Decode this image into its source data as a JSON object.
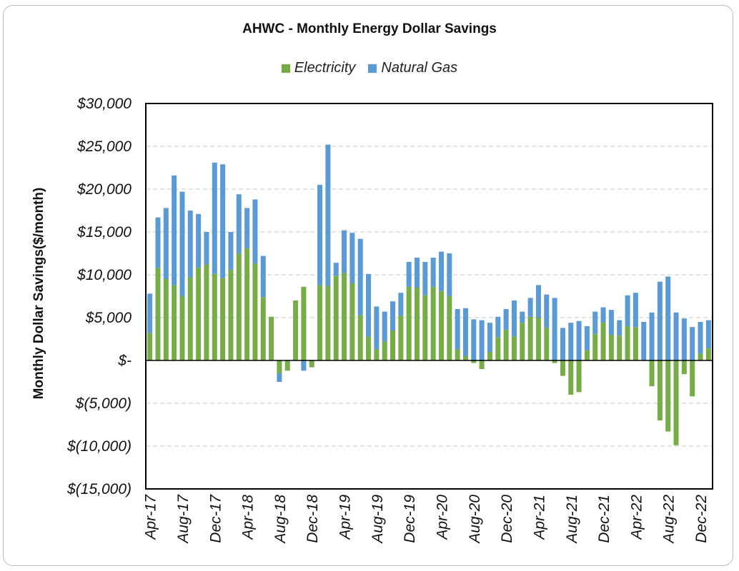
{
  "chart_data": {
    "type": "bar",
    "stacked": true,
    "title": "AHWC - Monthly Energy Dollar Savings",
    "ylabel": "Monthly Dollar Savings($/month)",
    "ylim": [
      -15000,
      30000
    ],
    "y_ticks": [
      30000,
      25000,
      20000,
      15000,
      10000,
      5000,
      0,
      -5000,
      -10000,
      -15000
    ],
    "y_tick_labels": [
      "$30,000",
      "$25,000",
      "$20,000",
      "$15,000",
      "$10,000",
      "$5,000",
      "$-",
      "$(5,000)",
      "$(10,000)",
      "$(15,000)"
    ],
    "x_tick_labels": [
      "Apr-17",
      "Aug-17",
      "Dec-17",
      "Apr-18",
      "Aug-18",
      "Dec-18",
      "Apr-19",
      "Aug-19",
      "Dec-19",
      "Apr-20",
      "Aug-20",
      "Dec-20",
      "Apr-21",
      "Aug-21",
      "Dec-21",
      "Apr-22",
      "Aug-22",
      "Dec-22"
    ],
    "grid": "horizontal dashed",
    "legend_position": "top",
    "colors": {
      "Electricity": "#77ad46",
      "Natural Gas": "#5b9bd5"
    },
    "categories": [
      "Apr-17",
      "May-17",
      "Jun-17",
      "Jul-17",
      "Aug-17",
      "Sep-17",
      "Oct-17",
      "Nov-17",
      "Dec-17",
      "Jan-18",
      "Feb-18",
      "Mar-18",
      "Apr-18",
      "May-18",
      "Jun-18",
      "Jul-18",
      "Aug-18",
      "Sep-18",
      "Oct-18",
      "Nov-18",
      "Dec-18",
      "Jan-19",
      "Feb-19",
      "Mar-19",
      "Apr-19",
      "May-19",
      "Jun-19",
      "Jul-19",
      "Aug-19",
      "Sep-19",
      "Oct-19",
      "Nov-19",
      "Dec-19",
      "Jan-20",
      "Feb-20",
      "Mar-20",
      "Apr-20",
      "May-20",
      "Jun-20",
      "Jul-20",
      "Aug-20",
      "Sep-20",
      "Oct-20",
      "Nov-20",
      "Dec-20",
      "Jan-21",
      "Feb-21",
      "Mar-21",
      "Apr-21",
      "May-21",
      "Jun-21",
      "Jul-21",
      "Aug-21",
      "Sep-21",
      "Oct-21",
      "Nov-21",
      "Dec-21",
      "Jan-22",
      "Feb-22",
      "Mar-22",
      "Apr-22",
      "May-22",
      "Jun-22",
      "Jul-22",
      "Aug-22",
      "Sep-22",
      "Oct-22",
      "Nov-22",
      "Dec-22",
      "Jan-23"
    ],
    "series": [
      {
        "name": "Electricity",
        "values": [
          3200,
          10800,
          9500,
          8800,
          7500,
          9700,
          10800,
          11200,
          10100,
          9600,
          10600,
          12500,
          13100,
          11300,
          7400,
          5100,
          -1500,
          -1200,
          7000,
          8600,
          -800,
          8800,
          8700,
          9900,
          10200,
          9000,
          5300,
          2800,
          1300,
          2200,
          3500,
          5200,
          8600,
          8500,
          7600,
          8600,
          8100,
          7500,
          1300,
          500,
          -300,
          -1000,
          1000,
          2700,
          3600,
          2800,
          4400,
          5100,
          5000,
          3800,
          -300,
          -1800,
          -4000,
          -3700,
          1200,
          3100,
          4400,
          3000,
          2900,
          4000,
          3900,
          0,
          -3000,
          -7000,
          -8300,
          -9900,
          -1600,
          -4200,
          800,
          1400
        ]
      },
      {
        "name": "Natural Gas",
        "values": [
          4600,
          5900,
          8300,
          12800,
          12200,
          7800,
          6300,
          3800,
          13000,
          13300,
          4400,
          6900,
          4700,
          7500,
          4800,
          0,
          -1000,
          0,
          0,
          -1200,
          0,
          11700,
          16500,
          1500,
          5000,
          5900,
          8900,
          7300,
          5000,
          3500,
          3400,
          2700,
          2900,
          3500,
          3900,
          3400,
          4600,
          5000,
          4700,
          5600,
          4800,
          4700,
          3400,
          2400,
          2400,
          4200,
          1300,
          2200,
          3800,
          3900,
          7300,
          3800,
          4400,
          4600,
          2800,
          2600,
          1800,
          2900,
          1800,
          3600,
          4000,
          4500,
          5600,
          9200,
          9800,
          5600,
          4900,
          3900,
          3700,
          3300
        ]
      }
    ]
  }
}
